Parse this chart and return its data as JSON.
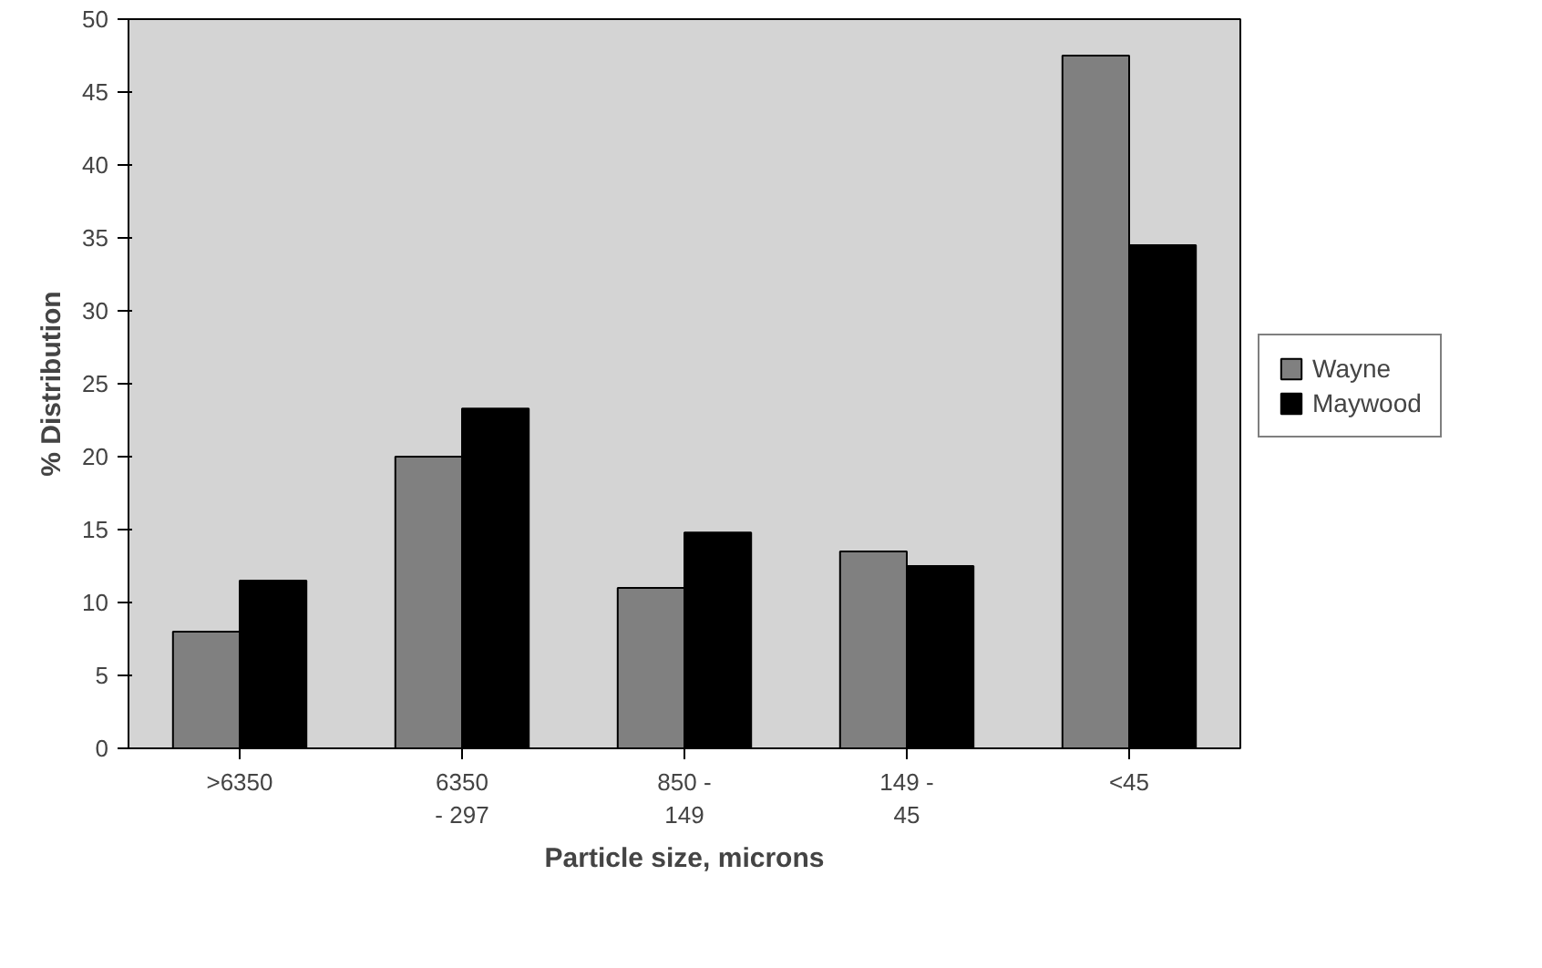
{
  "chart_data": {
    "type": "bar",
    "xlabel": "Particle size, microns",
    "ylabel": "% Distribution",
    "categories": [
      ">6350",
      "6350\n- 297",
      "850 -\n149",
      "149 -\n45",
      "<45"
    ],
    "series": [
      {
        "name": "Wayne",
        "color": "#808080",
        "values": [
          8,
          20,
          11,
          13.5,
          47.5
        ]
      },
      {
        "name": "Maywood",
        "color": "#000000",
        "values": [
          11.5,
          23.3,
          14.8,
          12.5,
          34.5
        ]
      }
    ],
    "ylim": [
      0,
      50
    ],
    "yticks": [
      0,
      5,
      10,
      15,
      20,
      25,
      30,
      35,
      40,
      45,
      50
    ],
    "grid": false,
    "legend": "right"
  }
}
